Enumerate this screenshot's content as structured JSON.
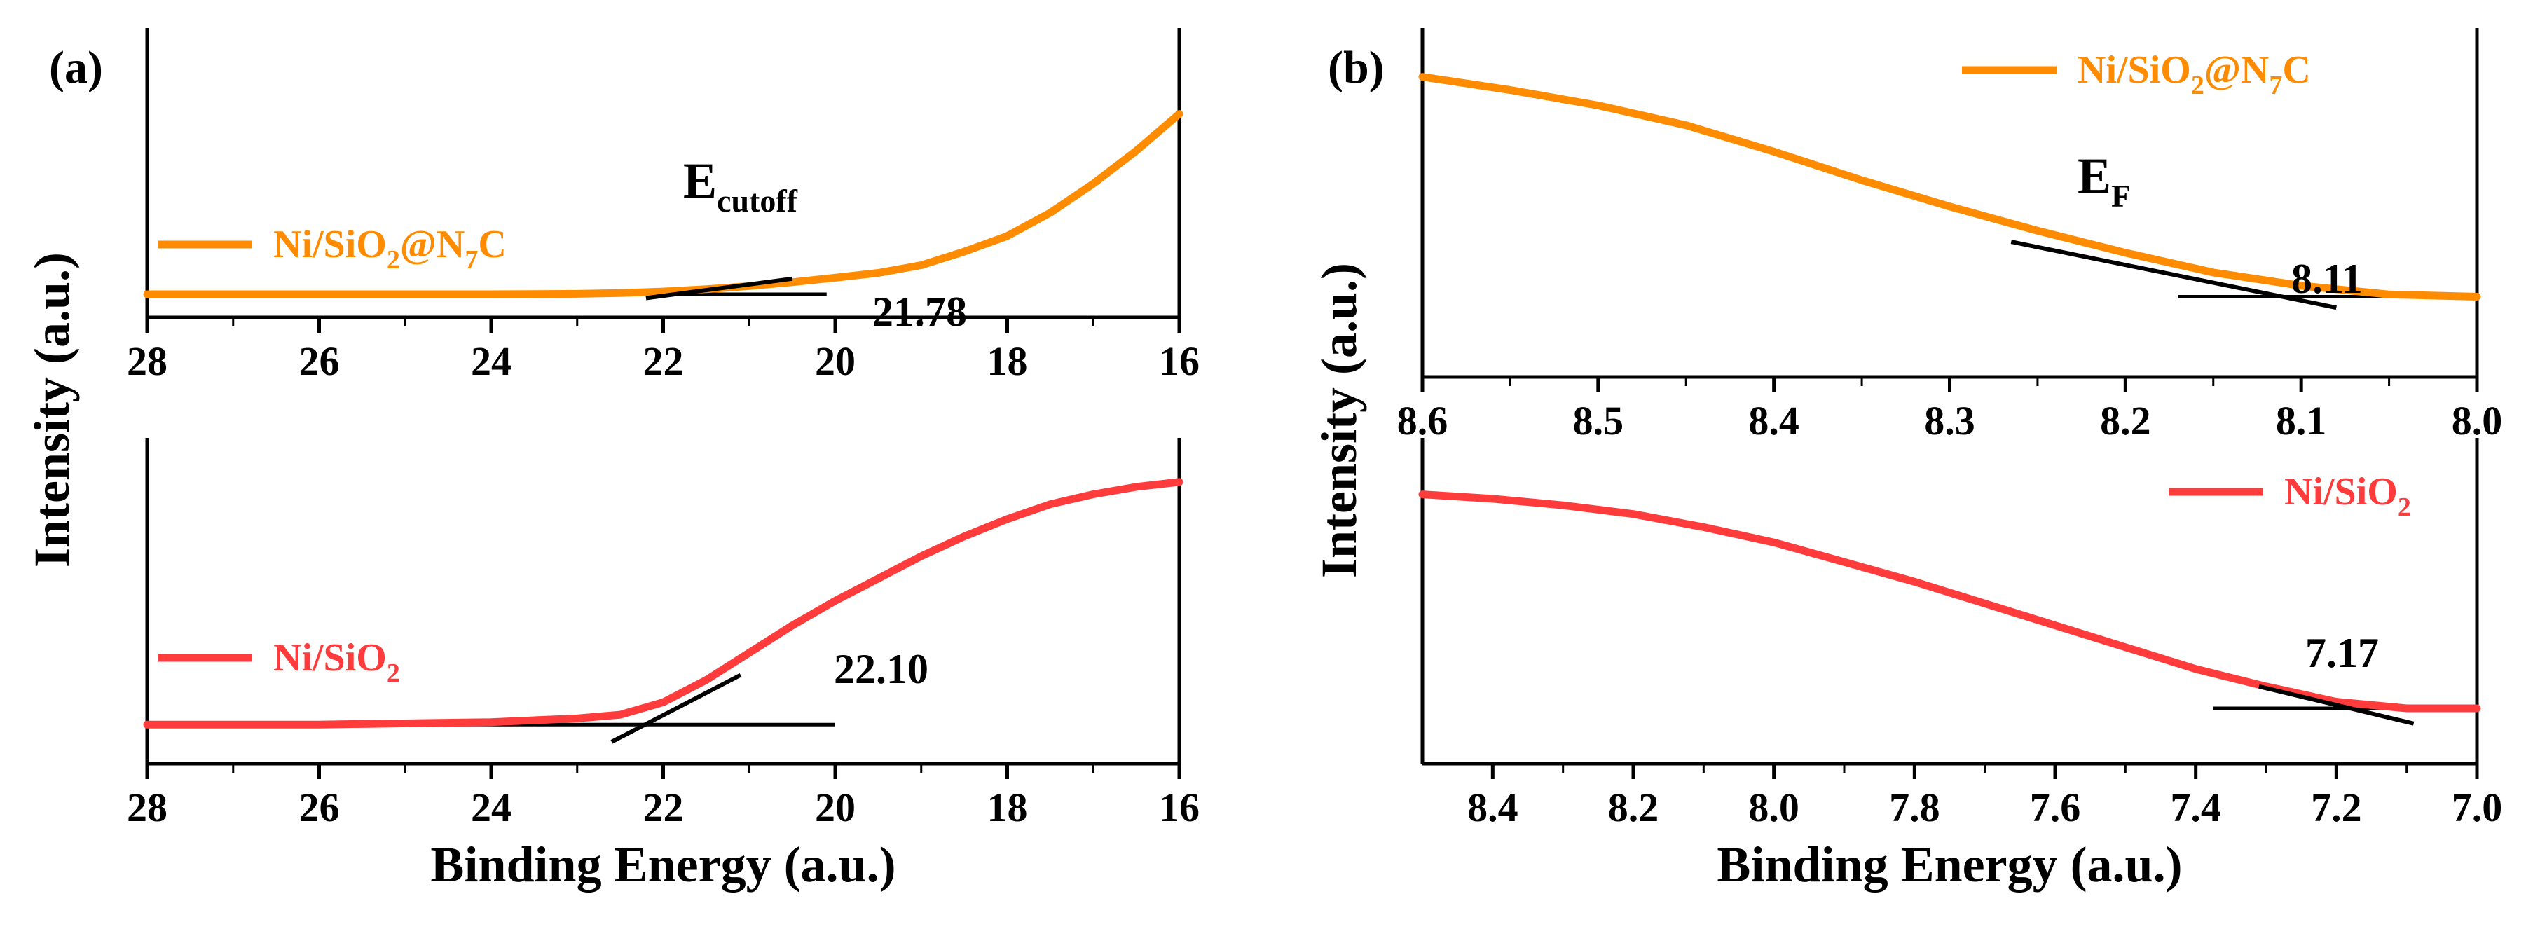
{
  "chart_data": [
    {
      "panel": "a-top",
      "type": "line",
      "panel_label": "(a)",
      "xlim": [
        28,
        16
      ],
      "x_ticks": [
        "28",
        "26",
        "24",
        "22",
        "20",
        "18",
        "16"
      ],
      "annotation_main": "E",
      "annotation_sub": "cutoff",
      "value_label": "21.78",
      "legend_pre": "Ni/SiO",
      "legend_sub1": "2",
      "legend_mid": "@N",
      "legend_sub2": "7",
      "legend_post": "C",
      "series_color": "#ff8c00",
      "ylim": [
        0,
        1
      ],
      "x": [
        28,
        26,
        24,
        23,
        22.5,
        22,
        21.5,
        21,
        20.5,
        20,
        19.5,
        19,
        18.5,
        18,
        17.5,
        17,
        16.5,
        16
      ],
      "y": [
        0.0,
        0.0,
        0.0,
        0.002,
        0.006,
        0.014,
        0.026,
        0.042,
        0.062,
        0.085,
        0.11,
        0.15,
        0.22,
        0.3,
        0.42,
        0.57,
        0.74,
        0.93
      ],
      "tangent_x": [
        22.2,
        20.5
      ],
      "tangent_y": [
        -0.02,
        0.08
      ],
      "baseline_x": [
        25.4,
        20.1
      ],
      "baseline_y": [
        0.0,
        0.0
      ]
    },
    {
      "panel": "a-bottom",
      "type": "line",
      "xlim": [
        28,
        16
      ],
      "x_ticks": [
        "28",
        "26",
        "24",
        "22",
        "20",
        "18",
        "16"
      ],
      "xlabel": "Binding Energy (a.u.)",
      "value_label": "22.10",
      "legend_pre": "Ni/SiO",
      "legend_sub1": "2",
      "series_color": "#ff3b3b",
      "ylim": [
        0,
        1
      ],
      "x": [
        28,
        26,
        24,
        23,
        22.5,
        22,
        21.5,
        21,
        20.5,
        20,
        19.5,
        19,
        18.5,
        18,
        17.5,
        17,
        16.5,
        16
      ],
      "y": [
        0.0,
        0.0,
        0.01,
        0.025,
        0.04,
        0.09,
        0.18,
        0.29,
        0.4,
        0.5,
        0.59,
        0.68,
        0.76,
        0.83,
        0.89,
        0.93,
        0.96,
        0.98
      ],
      "tangent_x": [
        22.6,
        21.1
      ],
      "tangent_y": [
        -0.07,
        0.2
      ],
      "baseline_x": [
        25.2,
        20.0
      ],
      "baseline_y": [
        0.0,
        0.0
      ]
    },
    {
      "panel": "b-top",
      "type": "line",
      "panel_label": "(b)",
      "xlim": [
        8.6,
        8.0
      ],
      "x_ticks": [
        "8.6",
        "8.5",
        "8.4",
        "8.3",
        "8.2",
        "8.1",
        "8.0"
      ],
      "annotation_main": "E",
      "annotation_sub": "F",
      "value_label": "8.11",
      "legend_pre": "Ni/SiO",
      "legend_sub1": "2",
      "legend_mid": "@N",
      "legend_sub2": "7",
      "legend_post": "C",
      "series_color": "#ff8c00",
      "ylim": [
        0,
        1
      ],
      "x": [
        8.6,
        8.55,
        8.5,
        8.45,
        8.4,
        8.35,
        8.3,
        8.25,
        8.2,
        8.15,
        8.1,
        8.05,
        8.0
      ],
      "y": [
        1.0,
        0.94,
        0.87,
        0.78,
        0.66,
        0.53,
        0.41,
        0.3,
        0.2,
        0.11,
        0.05,
        0.01,
        0.0
      ],
      "tangent_x": [
        8.265,
        8.08
      ],
      "tangent_y": [
        0.25,
        -0.05
      ],
      "baseline_x": [
        8.17,
        8.0
      ],
      "baseline_y": [
        0.0,
        0.0
      ]
    },
    {
      "panel": "b-bottom",
      "type": "line",
      "xlim": [
        8.5,
        7.0
      ],
      "x_ticks": [
        "8.4",
        "8.2",
        "8.0",
        "7.8",
        "7.6",
        "7.4",
        "7.2",
        "7.0"
      ],
      "xlabel": "Binding Energy (a.u.)",
      "value_label": "7.17",
      "legend_pre": "Ni/SiO",
      "legend_sub1": "2",
      "series_color": "#ff3b3b",
      "ylim": [
        0,
        1
      ],
      "x": [
        8.5,
        8.4,
        8.3,
        8.2,
        8.1,
        8.0,
        7.9,
        7.8,
        7.7,
        7.6,
        7.5,
        7.4,
        7.3,
        7.2,
        7.1,
        7.0
      ],
      "y": [
        0.98,
        0.96,
        0.93,
        0.89,
        0.83,
        0.76,
        0.67,
        0.58,
        0.48,
        0.38,
        0.28,
        0.18,
        0.1,
        0.03,
        0.0,
        0.0
      ],
      "tangent_x": [
        7.31,
        7.09
      ],
      "tangent_y": [
        0.1,
        -0.07
      ],
      "baseline_x": [
        7.375,
        7.0
      ],
      "baseline_y": [
        0.0,
        0.0
      ]
    }
  ],
  "ylabel": "Intensity (a.u.)"
}
